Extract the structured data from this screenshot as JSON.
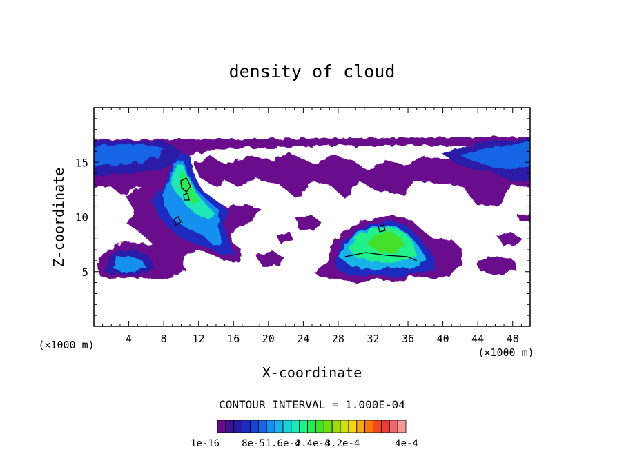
{
  "chart_data": {
    "type": "heatmap",
    "title": "density of cloud",
    "xlabel": "X-coordinate",
    "ylabel": "Z-coordinate",
    "x_unit": "(×1000 m)",
    "x_unit_right": "(×1000 m)",
    "xlim": [
      0,
      50
    ],
    "ylim": [
      0,
      20
    ],
    "x_ticks": [
      4,
      8,
      12,
      16,
      20,
      24,
      28,
      32,
      36,
      40,
      44,
      48
    ],
    "y_ticks": [
      5,
      10,
      15
    ],
    "contour_interval_text": "CONTOUR INTERVAL = 1.000E-04",
    "colorbar": {
      "colors": [
        "#6a0a8c",
        "#3b1095",
        "#2a1aa8",
        "#1a2cc0",
        "#1645d8",
        "#1565e6",
        "#1590ee",
        "#18b2e8",
        "#1ad2d8",
        "#1ee8b8",
        "#22f08a",
        "#2cea55",
        "#44e02a",
        "#70dc14",
        "#a0dc0e",
        "#cfe00c",
        "#f2d80c",
        "#f8a80c",
        "#f8780c",
        "#f4481a",
        "#ee3a3a",
        "#ee6a6a",
        "#f29a9a"
      ],
      "labels": [
        "1e-16",
        "8e-5",
        "1.6e-4",
        "2.4e-4",
        "3.2e-4",
        "4e-4"
      ]
    },
    "regions": [
      {
        "name": "upper cloud layer",
        "x": [
          0,
          50
        ],
        "z": [
          12.5,
          17
        ],
        "level": "1e-16 to 8e-5"
      },
      {
        "name": "left-edge core",
        "x": [
          0,
          7
        ],
        "z": [
          13.5,
          16.5
        ],
        "level": "8e-5"
      },
      {
        "name": "right-edge core",
        "x": [
          42,
          50
        ],
        "z": [
          13.5,
          16.8
        ],
        "level": "8e-5"
      },
      {
        "name": "left column",
        "x": [
          7,
          16
        ],
        "z": [
          6.5,
          16.5
        ],
        "level": "up to 2.4e-4"
      },
      {
        "name": "lower-left cloud",
        "x": [
          0.5,
          8
        ],
        "z": [
          4.5,
          7
        ],
        "level": "8e-5"
      },
      {
        "name": "central cloud",
        "x": [
          27,
          40
        ],
        "z": [
          4.5,
          10
        ],
        "level": "up to 1.6e-4"
      },
      {
        "name": "right lower patches",
        "x": [
          40,
          48
        ],
        "z": [
          4.8,
          7.5
        ],
        "level": "1e-16"
      }
    ]
  }
}
